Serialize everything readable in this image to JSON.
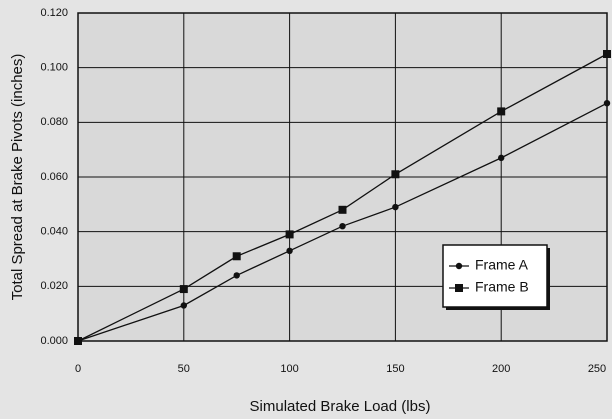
{
  "chart_data": {
    "type": "line",
    "x_label": "Simulated Brake Load (lbs)",
    "y_label": "Total Spread at Brake Pivots (inches)",
    "x": [
      0,
      50,
      75,
      100,
      125,
      150,
      200,
      250
    ],
    "series": [
      {
        "name": "Frame A",
        "color": "#111111",
        "marker": "circle",
        "values": [
          0,
          0.013,
          0.024,
          0.033,
          0.042,
          0.049,
          0.067,
          0.087
        ]
      },
      {
        "name": "Frame B",
        "color": "#111111",
        "marker": "square",
        "values": [
          0,
          0.019,
          0.031,
          0.039,
          0.048,
          0.061,
          0.084,
          0.105
        ]
      }
    ],
    "xlim": [
      0,
      250
    ],
    "xticks": [
      0,
      50,
      100,
      150,
      200,
      250
    ],
    "ylim": [
      0,
      0.12
    ],
    "yticks": [
      {
        "value": 0,
        "label": "0.000"
      },
      {
        "value": 0.02,
        "label": "0.020"
      },
      {
        "value": 0.04,
        "label": "0.040"
      },
      {
        "value": 0.06,
        "label": "0.060"
      },
      {
        "value": 0.08,
        "label": "0.080"
      },
      {
        "value": 0.1,
        "label": "0.100"
      },
      {
        "value": 0.12,
        "label": "0.120"
      }
    ],
    "grid": true,
    "legend": "lower right"
  }
}
